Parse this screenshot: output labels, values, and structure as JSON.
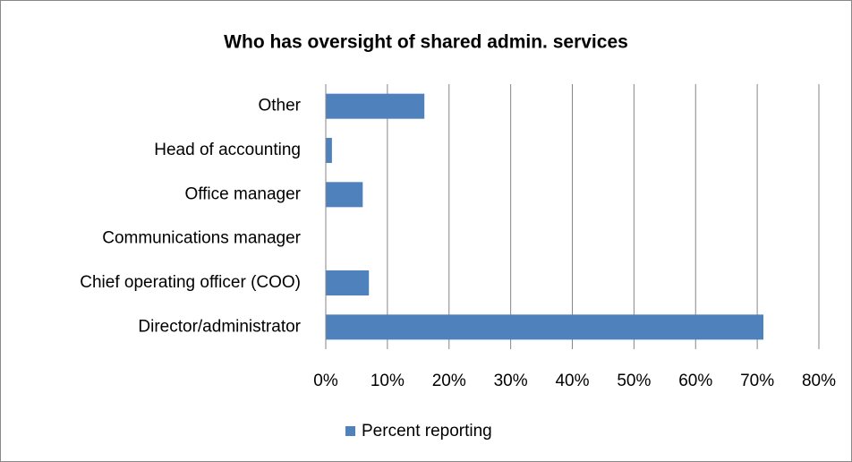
{
  "chart_data": {
    "type": "bar",
    "orientation": "horizontal",
    "title": "Who has oversight of shared admin. services",
    "categories": [
      "Other",
      "Head of accounting",
      "Office manager",
      "Communications manager",
      "Chief operating officer (COO)",
      "Director/administrator"
    ],
    "series": [
      {
        "name": "Percent reporting",
        "color": "#4f81bd",
        "values": [
          16,
          1,
          6,
          0,
          7,
          71
        ]
      }
    ],
    "xlim": [
      0,
      80
    ],
    "xticks": [
      {
        "value": 0,
        "label": "0%"
      },
      {
        "value": 10,
        "label": "10%"
      },
      {
        "value": 20,
        "label": "20%"
      },
      {
        "value": 30,
        "label": "30%"
      },
      {
        "value": 40,
        "label": "40%"
      },
      {
        "value": 50,
        "label": "50%"
      },
      {
        "value": 60,
        "label": "60%"
      },
      {
        "value": 70,
        "label": "70%"
      },
      {
        "value": 80,
        "label": "80%"
      }
    ],
    "grid": true,
    "legend": "bottom"
  }
}
